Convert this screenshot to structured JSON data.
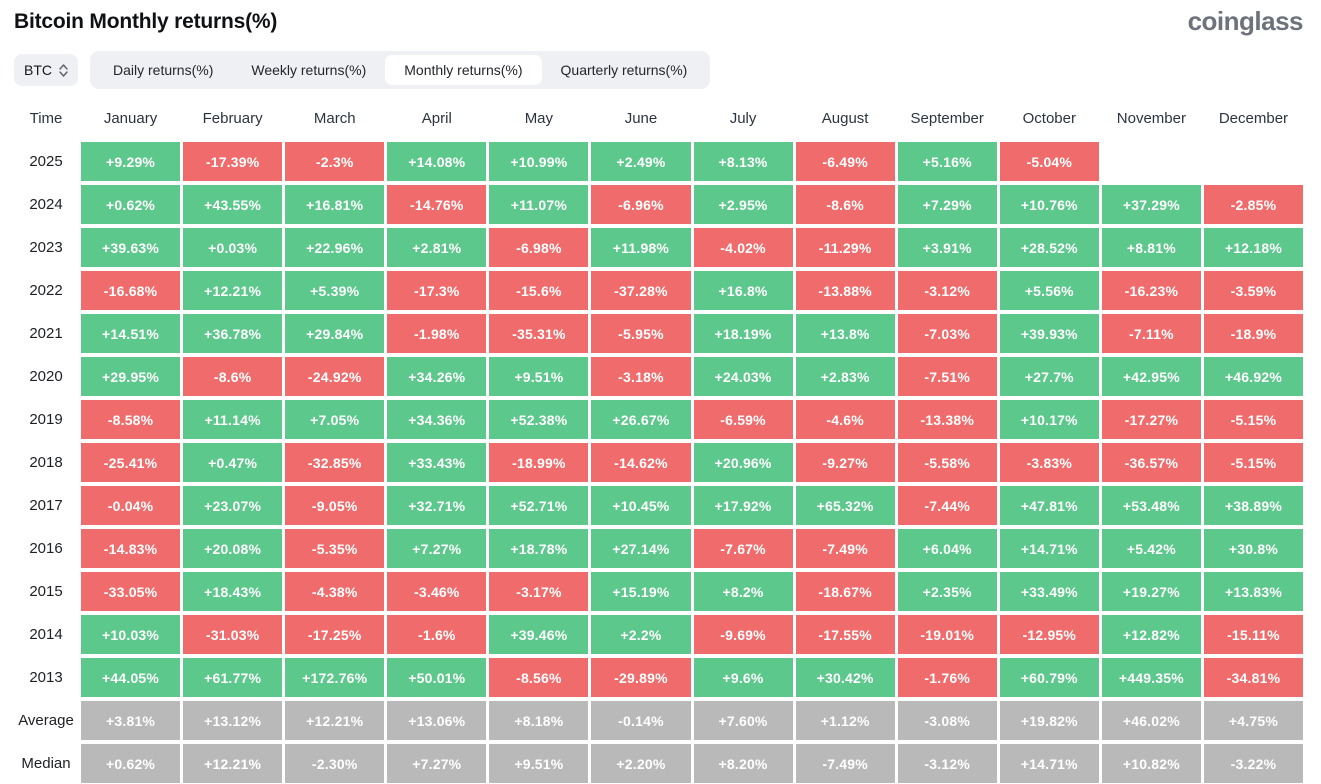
{
  "header": {
    "title": "Bitcoin Monthly returns(%)",
    "logo_text": "coinglass"
  },
  "controls": {
    "symbol_select": {
      "value": "BTC"
    },
    "tabs": [
      {
        "label": "Daily returns(%)",
        "selected": false
      },
      {
        "label": "Weekly returns(%)",
        "selected": false
      },
      {
        "label": "Monthly returns(%)",
        "selected": true
      },
      {
        "label": "Quarterly returns(%)",
        "selected": false
      }
    ]
  },
  "colors": {
    "positive": "#5dc88c",
    "negative": "#f06c6c",
    "neutral": "#b9b9b9"
  },
  "chart_data": {
    "type": "heatmap",
    "title": "Bitcoin Monthly returns(%)",
    "time_column_label": "Time",
    "columns": [
      "January",
      "February",
      "March",
      "April",
      "May",
      "June",
      "July",
      "August",
      "September",
      "October",
      "November",
      "December"
    ],
    "rows": [
      {
        "label": "2025",
        "kind": "year",
        "cells": [
          "+9.29%",
          "-17.39%",
          "-2.3%",
          "+14.08%",
          "+10.99%",
          "+2.49%",
          "+8.13%",
          "-6.49%",
          "+5.16%",
          "-5.04%",
          null,
          null
        ]
      },
      {
        "label": "2024",
        "kind": "year",
        "cells": [
          "+0.62%",
          "+43.55%",
          "+16.81%",
          "-14.76%",
          "+11.07%",
          "-6.96%",
          "+2.95%",
          "-8.6%",
          "+7.29%",
          "+10.76%",
          "+37.29%",
          "-2.85%"
        ]
      },
      {
        "label": "2023",
        "kind": "year",
        "cells": [
          "+39.63%",
          "+0.03%",
          "+22.96%",
          "+2.81%",
          "-6.98%",
          "+11.98%",
          "-4.02%",
          "-11.29%",
          "+3.91%",
          "+28.52%",
          "+8.81%",
          "+12.18%"
        ]
      },
      {
        "label": "2022",
        "kind": "year",
        "cells": [
          "-16.68%",
          "+12.21%",
          "+5.39%",
          "-17.3%",
          "-15.6%",
          "-37.28%",
          "+16.8%",
          "-13.88%",
          "-3.12%",
          "+5.56%",
          "-16.23%",
          "-3.59%"
        ]
      },
      {
        "label": "2021",
        "kind": "year",
        "cells": [
          "+14.51%",
          "+36.78%",
          "+29.84%",
          "-1.98%",
          "-35.31%",
          "-5.95%",
          "+18.19%",
          "+13.8%",
          "-7.03%",
          "+39.93%",
          "-7.11%",
          "-18.9%"
        ]
      },
      {
        "label": "2020",
        "kind": "year",
        "cells": [
          "+29.95%",
          "-8.6%",
          "-24.92%",
          "+34.26%",
          "+9.51%",
          "-3.18%",
          "+24.03%",
          "+2.83%",
          "-7.51%",
          "+27.7%",
          "+42.95%",
          "+46.92%"
        ]
      },
      {
        "label": "2019",
        "kind": "year",
        "cells": [
          "-8.58%",
          "+11.14%",
          "+7.05%",
          "+34.36%",
          "+52.38%",
          "+26.67%",
          "-6.59%",
          "-4.6%",
          "-13.38%",
          "+10.17%",
          "-17.27%",
          "-5.15%"
        ]
      },
      {
        "label": "2018",
        "kind": "year",
        "cells": [
          "-25.41%",
          "+0.47%",
          "-32.85%",
          "+33.43%",
          "-18.99%",
          "-14.62%",
          "+20.96%",
          "-9.27%",
          "-5.58%",
          "-3.83%",
          "-36.57%",
          "-5.15%"
        ]
      },
      {
        "label": "2017",
        "kind": "year",
        "cells": [
          "-0.04%",
          "+23.07%",
          "-9.05%",
          "+32.71%",
          "+52.71%",
          "+10.45%",
          "+17.92%",
          "+65.32%",
          "-7.44%",
          "+47.81%",
          "+53.48%",
          "+38.89%"
        ]
      },
      {
        "label": "2016",
        "kind": "year",
        "cells": [
          "-14.83%",
          "+20.08%",
          "-5.35%",
          "+7.27%",
          "+18.78%",
          "+27.14%",
          "-7.67%",
          "-7.49%",
          "+6.04%",
          "+14.71%",
          "+5.42%",
          "+30.8%"
        ]
      },
      {
        "label": "2015",
        "kind": "year",
        "cells": [
          "-33.05%",
          "+18.43%",
          "-4.38%",
          "-3.46%",
          "-3.17%",
          "+15.19%",
          "+8.2%",
          "-18.67%",
          "+2.35%",
          "+33.49%",
          "+19.27%",
          "+13.83%"
        ]
      },
      {
        "label": "2014",
        "kind": "year",
        "cells": [
          "+10.03%",
          "-31.03%",
          "-17.25%",
          "-1.6%",
          "+39.46%",
          "+2.2%",
          "-9.69%",
          "-17.55%",
          "-19.01%",
          "-12.95%",
          "+12.82%",
          "-15.11%"
        ]
      },
      {
        "label": "2013",
        "kind": "year",
        "cells": [
          "+44.05%",
          "+61.77%",
          "+172.76%",
          "+50.01%",
          "-8.56%",
          "-29.89%",
          "+9.6%",
          "+30.42%",
          "-1.76%",
          "+60.79%",
          "+449.35%",
          "-34.81%"
        ]
      },
      {
        "label": "Average",
        "kind": "stat",
        "cells": [
          "+3.81%",
          "+13.12%",
          "+12.21%",
          "+13.06%",
          "+8.18%",
          "-0.14%",
          "+7.60%",
          "+1.12%",
          "-3.08%",
          "+19.82%",
          "+46.02%",
          "+4.75%"
        ]
      },
      {
        "label": "Median",
        "kind": "stat",
        "cells": [
          "+0.62%",
          "+12.21%",
          "-2.30%",
          "+7.27%",
          "+9.51%",
          "+2.20%",
          "+8.20%",
          "-7.49%",
          "-3.12%",
          "+14.71%",
          "+10.82%",
          "-3.22%"
        ]
      }
    ]
  }
}
